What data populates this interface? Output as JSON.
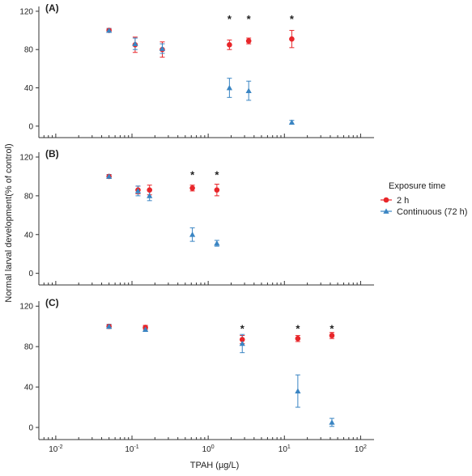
{
  "chart_data": {
    "type": "scatter",
    "xlabel": "TPAH (µg/L)",
    "ylabel": "Normal larval development(% of control)",
    "xscale": "log",
    "xlim": [
      0.006,
      150
    ],
    "x_ticks": [
      {
        "value": 0.01,
        "base": "10",
        "exp": "-2"
      },
      {
        "value": 0.1,
        "base": "10",
        "exp": "-1"
      },
      {
        "value": 1,
        "base": "10",
        "exp": "0"
      },
      {
        "value": 10,
        "base": "10",
        "exp": "1"
      },
      {
        "value": 100,
        "base": "10",
        "exp": "2"
      }
    ],
    "y_ticks": [
      "0",
      "40",
      "80",
      "120"
    ],
    "ylim": [
      -12,
      125
    ],
    "legend": {
      "placement": "right",
      "title": "Exposure time",
      "entries": [
        "2 h",
        "Continuous (72 h)"
      ]
    },
    "colors": {
      "two_h": "#e8262a",
      "continuous": "#3a85c3"
    },
    "panels": [
      {
        "label": "(A)",
        "two_h": [
          {
            "x": 0.05,
            "y": 100,
            "err": 2
          },
          {
            "x": 0.11,
            "y": 85,
            "err": 8
          },
          {
            "x": 0.25,
            "y": 80,
            "err": 8
          },
          {
            "x": 1.9,
            "y": 85,
            "err": 5
          },
          {
            "x": 3.4,
            "y": 89,
            "err": 3
          },
          {
            "x": 12.5,
            "y": 91,
            "err": 9
          }
        ],
        "continuous": [
          {
            "x": 0.05,
            "y": 100,
            "err": 2
          },
          {
            "x": 0.11,
            "y": 86,
            "err": 6
          },
          {
            "x": 0.25,
            "y": 81,
            "err": 5
          },
          {
            "x": 1.9,
            "y": 40,
            "err": 10
          },
          {
            "x": 3.4,
            "y": 37,
            "err": 10
          },
          {
            "x": 12.5,
            "y": 4,
            "err": 2
          }
        ],
        "significance": [
          {
            "x": 1.9,
            "y": 113,
            "text": "*"
          },
          {
            "x": 3.4,
            "y": 113,
            "text": "*"
          },
          {
            "x": 12.5,
            "y": 113,
            "text": "*"
          }
        ]
      },
      {
        "label": "(B)",
        "two_h": [
          {
            "x": 0.05,
            "y": 100,
            "err": 2
          },
          {
            "x": 0.12,
            "y": 86,
            "err": 4
          },
          {
            "x": 0.17,
            "y": 86,
            "err": 5
          },
          {
            "x": 0.62,
            "y": 88,
            "err": 3
          },
          {
            "x": 1.3,
            "y": 86,
            "err": 6
          }
        ],
        "continuous": [
          {
            "x": 0.05,
            "y": 100,
            "err": 2
          },
          {
            "x": 0.12,
            "y": 85,
            "err": 5
          },
          {
            "x": 0.17,
            "y": 80,
            "err": 5
          },
          {
            "x": 0.62,
            "y": 40,
            "err": 7
          },
          {
            "x": 1.3,
            "y": 31,
            "err": 3
          }
        ],
        "significance": [
          {
            "x": 0.62,
            "y": 103,
            "text": "*"
          },
          {
            "x": 1.3,
            "y": 103,
            "text": "*"
          }
        ]
      },
      {
        "label": "(C)",
        "two_h": [
          {
            "x": 0.05,
            "y": 100,
            "err": 2
          },
          {
            "x": 0.15,
            "y": 99,
            "err": 2
          },
          {
            "x": 2.8,
            "y": 87,
            "err": 4
          },
          {
            "x": 15,
            "y": 88,
            "err": 3
          },
          {
            "x": 42,
            "y": 91,
            "err": 3
          }
        ],
        "continuous": [
          {
            "x": 0.05,
            "y": 100,
            "err": 2
          },
          {
            "x": 0.15,
            "y": 97,
            "err": 2
          },
          {
            "x": 2.8,
            "y": 83,
            "err": 9
          },
          {
            "x": 15,
            "y": 36,
            "err": 16
          },
          {
            "x": 42,
            "y": 5,
            "err": 4
          }
        ],
        "significance": [
          {
            "x": 2.8,
            "y": 99,
            "text": "*"
          },
          {
            "x": 15,
            "y": 99,
            "text": "*"
          },
          {
            "x": 42,
            "y": 99,
            "text": "*"
          }
        ]
      }
    ]
  }
}
